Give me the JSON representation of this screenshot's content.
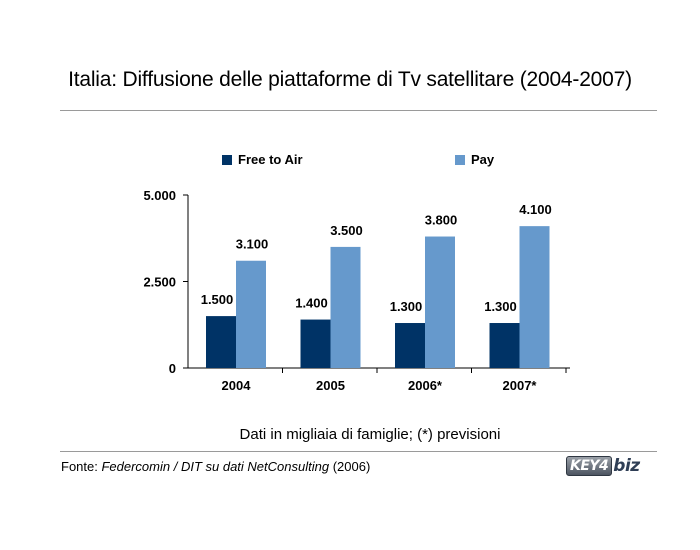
{
  "page": {
    "title": "Italia: Diffusione delle piattaforme di Tv satellitare (2004-2007)",
    "caption": "Dati in migliaia di famiglie; (*) previsioni",
    "source_prefix": "Fonte: ",
    "source_body": "Federcomin / DIT su dati NetConsulting",
    "source_year": " (2006)",
    "logo_text_part1": "KEY4",
    "logo_text_part2": "biz"
  },
  "chart_data": {
    "type": "bar",
    "title": "Italia: Diffusione delle piattaforme di Tv satellitare (2004-2007)",
    "categories": [
      "2004",
      "2005",
      "2006*",
      "2007*"
    ],
    "series": [
      {
        "name": "Free to Air",
        "color": "#003366",
        "values": [
          1500,
          1400,
          1300,
          1300
        ],
        "labels": [
          "1.500",
          "1.400",
          "1.300",
          "1.300"
        ]
      },
      {
        "name": "Pay",
        "color": "#6699cc",
        "values": [
          3100,
          3500,
          3800,
          4100
        ],
        "labels": [
          "3.100",
          "3.500",
          "3.800",
          "4.100"
        ]
      }
    ],
    "ylim": [
      0,
      5000
    ],
    "yticks": [
      0,
      2500,
      5000
    ],
    "ytick_labels": [
      "0",
      "2.500",
      "5.000"
    ],
    "xlabel": "",
    "ylabel": "",
    "grid": false,
    "legend_position": "top"
  }
}
